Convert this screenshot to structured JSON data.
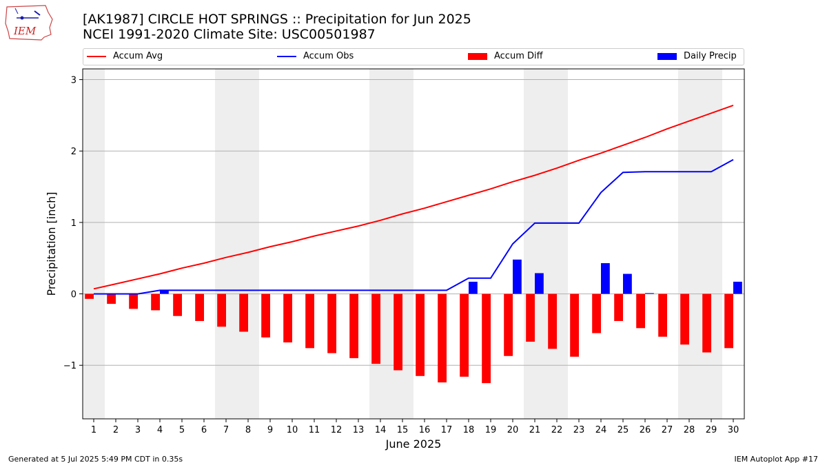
{
  "header": {
    "title_line1": "[AK1987] CIRCLE HOT SPRINGS :: Precipitation for Jun 2025",
    "title_line2": "NCEI 1991-2020 Climate Site: USC00501987"
  },
  "logo": {
    "text": "IEM"
  },
  "legend": {
    "accum_avg": "Accum Avg",
    "accum_obs": "Accum Obs",
    "accum_diff": "Accum Diff",
    "daily_precip": "Daily Precip"
  },
  "footer": {
    "generated": "Generated at 5 Jul 2025 5:49 PM CDT in 0.35s",
    "app": "IEM Autoplot App #17"
  },
  "colors": {
    "avg": "#ff0000",
    "obs": "#0000ff",
    "diff": "#ff0000",
    "daily": "#0000ff",
    "weekend": "#eeeeee",
    "grid": "#b0b0b0"
  },
  "chart_data": {
    "type": "bar",
    "xlabel": "June 2025",
    "ylabel": "Precipitation [inch]",
    "xlim": [
      0.5,
      30.5
    ],
    "ylim": [
      -1.75,
      3.15
    ],
    "yticks": [
      -1,
      0,
      1,
      2,
      3
    ],
    "ytick_labels": [
      "−1",
      "0",
      "1",
      "2",
      "3"
    ],
    "grid": "horizontal",
    "legend_placement": "top",
    "weekend_shading_days": [
      1,
      7,
      8,
      14,
      15,
      21,
      22,
      28,
      29
    ],
    "days": [
      1,
      2,
      3,
      4,
      5,
      6,
      7,
      8,
      9,
      10,
      11,
      12,
      13,
      14,
      15,
      16,
      17,
      18,
      19,
      20,
      21,
      22,
      23,
      24,
      25,
      26,
      27,
      28,
      29,
      30
    ],
    "series": [
      {
        "name": "Accum Avg",
        "kind": "line",
        "values": [
          0.07,
          0.14,
          0.21,
          0.28,
          0.36,
          0.43,
          0.51,
          0.58,
          0.66,
          0.73,
          0.81,
          0.88,
          0.95,
          1.03,
          1.12,
          1.2,
          1.29,
          1.38,
          1.47,
          1.57,
          1.66,
          1.76,
          1.87,
          1.97,
          2.08,
          2.19,
          2.31,
          2.42,
          2.53,
          2.64
        ]
      },
      {
        "name": "Accum Obs",
        "kind": "line",
        "values": [
          0.0,
          0.0,
          0.0,
          0.05,
          0.05,
          0.05,
          0.05,
          0.05,
          0.05,
          0.05,
          0.05,
          0.05,
          0.05,
          0.05,
          0.05,
          0.05,
          0.05,
          0.22,
          0.22,
          0.7,
          0.99,
          0.99,
          0.99,
          1.42,
          1.7,
          1.71,
          1.71,
          1.71,
          1.71,
          1.88
        ]
      },
      {
        "name": "Accum Diff",
        "kind": "bar",
        "values": [
          -0.07,
          -0.14,
          -0.21,
          -0.23,
          -0.31,
          -0.38,
          -0.46,
          -0.53,
          -0.61,
          -0.68,
          -0.76,
          -0.83,
          -0.9,
          -0.98,
          -1.07,
          -1.15,
          -1.24,
          -1.16,
          -1.25,
          -0.87,
          -0.67,
          -0.77,
          -0.88,
          -0.55,
          -0.38,
          -0.48,
          -0.6,
          -0.71,
          -0.82,
          -0.76
        ]
      },
      {
        "name": "Daily Precip",
        "kind": "bar",
        "values": [
          0.0,
          0.0,
          0.0,
          0.05,
          0.0,
          0.0,
          0.0,
          0.0,
          0.0,
          0.0,
          0.0,
          0.0,
          0.0,
          0.0,
          0.0,
          0.0,
          0.0,
          0.17,
          0.0,
          0.48,
          0.29,
          0.0,
          0.0,
          0.43,
          0.28,
          0.01,
          0.0,
          0.0,
          0.0,
          0.17
        ]
      }
    ]
  }
}
